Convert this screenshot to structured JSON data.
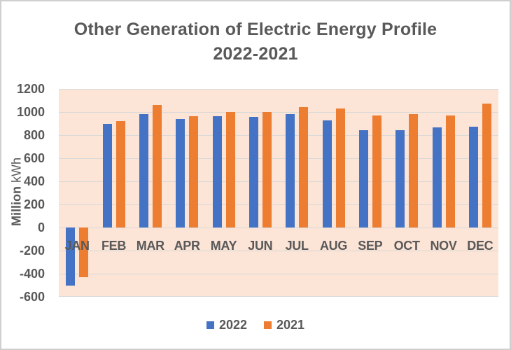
{
  "chart_data": {
    "type": "bar",
    "title": "Other Generation of Electric Energy Profile 2022-2021",
    "title_line1": "Other Generation of Electric Energy Profile",
    "title_line2": "2022-2021",
    "categories": [
      "JAN",
      "FEB",
      "MAR",
      "APR",
      "MAY",
      "JUN",
      "JUL",
      "AUG",
      "SEP",
      "OCT",
      "NOV",
      "DEC"
    ],
    "series": [
      {
        "name": "2022",
        "color": "#4472C4",
        "values": [
          -500,
          900,
          980,
          940,
          965,
          955,
          980,
          925,
          845,
          845,
          865,
          875
        ]
      },
      {
        "name": "2021",
        "color": "#ED7D31",
        "values": [
          -430,
          920,
          1060,
          965,
          1000,
          1000,
          1040,
          1030,
          970,
          980,
          970,
          1070
        ]
      }
    ],
    "ylabel_bold": "Million",
    "ylabel_regular": " kWh",
    "ylim": [
      -600,
      1200
    ],
    "ytick_step": 200,
    "yticks": [
      1200,
      1000,
      800,
      600,
      400,
      200,
      0,
      -200,
      -400,
      -600
    ],
    "grid": true,
    "legend_position": "bottom",
    "colors": {
      "plot_background": "#FCE4D6",
      "gridline": "#D9D9D9",
      "text": "#595959",
      "series_2022": "#4472C4",
      "series_2021": "#ED7D31"
    }
  }
}
